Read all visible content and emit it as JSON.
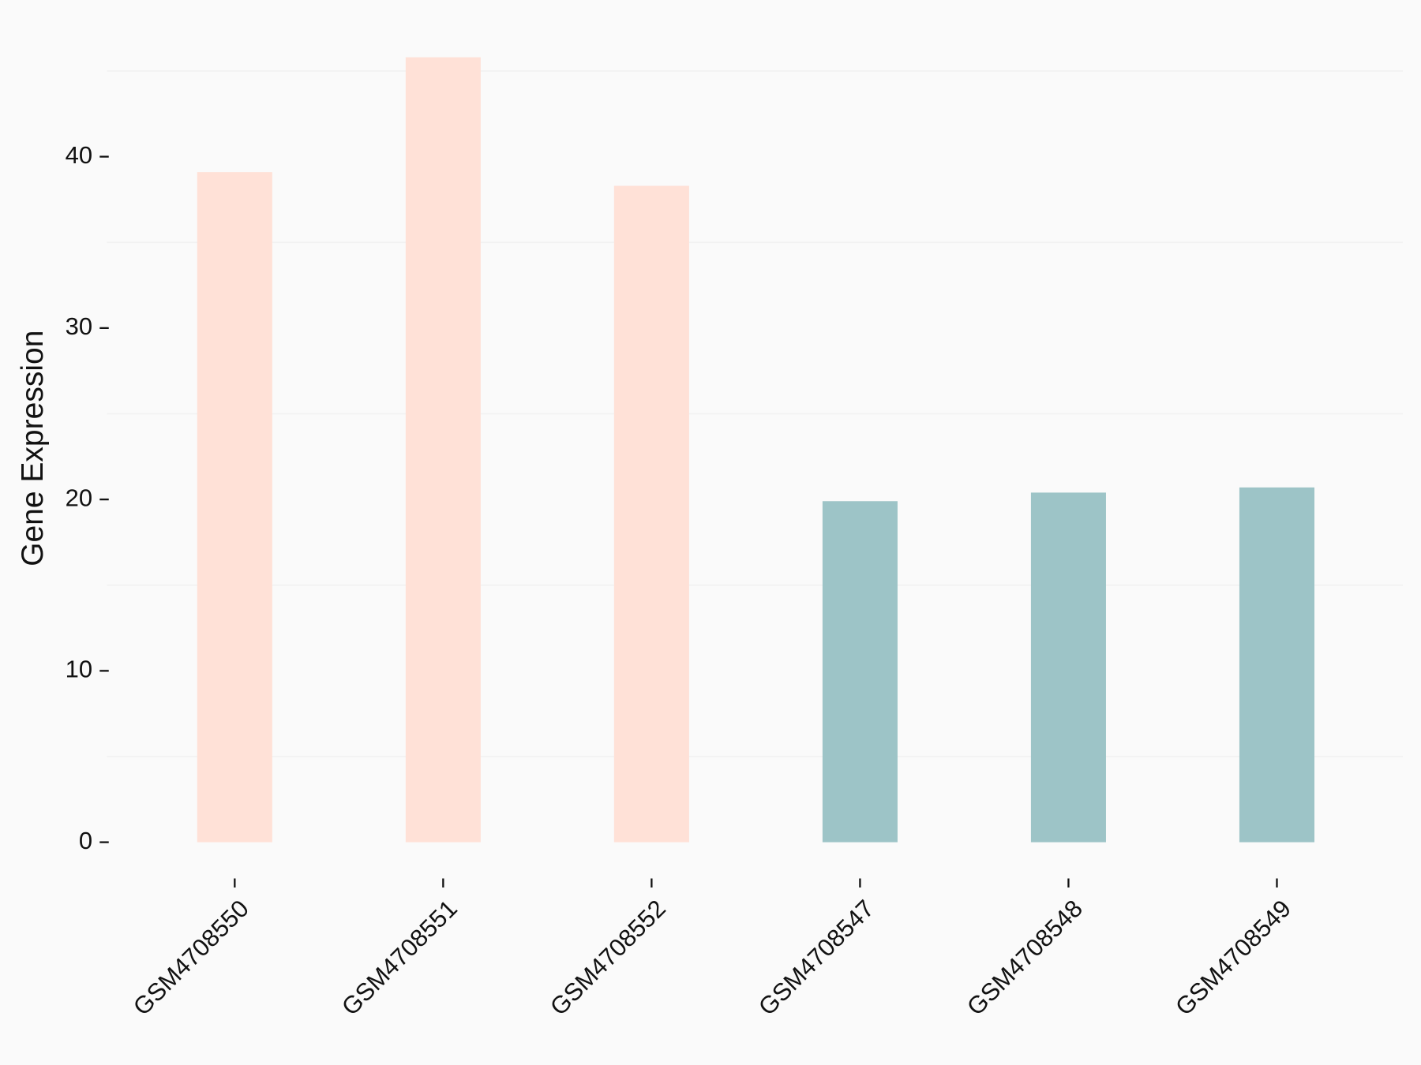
{
  "chart_data": {
    "type": "bar",
    "y_label": "Gene Expression",
    "categories": [
      "GSM4708550",
      "GSM4708551",
      "GSM4708552",
      "GSM4708547",
      "GSM4708548",
      "GSM4708549"
    ],
    "values": [
      39.1,
      45.8,
      38.3,
      19.9,
      20.4,
      20.7
    ],
    "colors": [
      "#ffe1d7",
      "#ffe1d7",
      "#ffe1d7",
      "#9dc4c7",
      "#9dc4c7",
      "#9dc4c7"
    ],
    "ylim": [
      -2,
      48
    ],
    "yticks": [
      0,
      10,
      20,
      30,
      40
    ],
    "minor_grid": [
      5,
      15,
      25,
      35,
      45
    ],
    "grid": true
  }
}
